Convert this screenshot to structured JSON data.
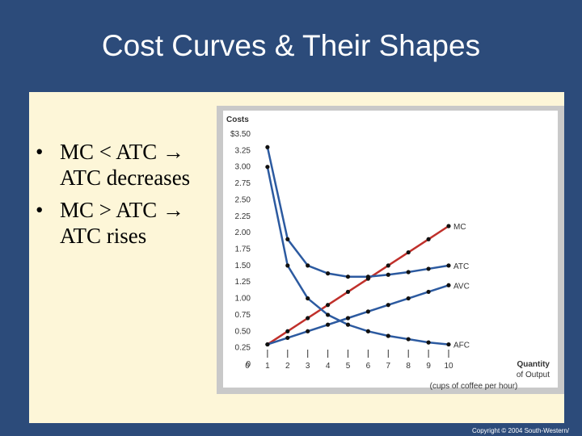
{
  "slide": {
    "title": "Cost Curves & Their Shapes",
    "bullets": [
      {
        "bullet": "•",
        "line1": "MC < ATC ",
        "arrow": "→",
        "line2": "ATC decreases"
      },
      {
        "bullet": "•",
        "line1": "MC > ATC ",
        "arrow": "→",
        "line2": "ATC rises"
      }
    ],
    "copyright": "Copyright © 2004 South-Western/"
  },
  "chart_data": {
    "type": "line",
    "title": "",
    "ylabel": "Costs",
    "xlabel_line1": "Quantity",
    "xlabel_line2": "of Output",
    "xlabel_sub": "(cups of coffee per hour)",
    "x": [
      1,
      2,
      3,
      4,
      5,
      6,
      7,
      8,
      9,
      10
    ],
    "xlim": [
      0,
      10
    ],
    "ylim": [
      0,
      3.5
    ],
    "y_ticks": [
      "0",
      "0.25",
      "0.50",
      "0.75",
      "1.00",
      "1.25",
      "1.50",
      "1.75",
      "2.00",
      "2.25",
      "2.50",
      "2.75",
      "3.00",
      "3.25",
      "$3.50"
    ],
    "y_tick_values": [
      0,
      0.25,
      0.5,
      0.75,
      1.0,
      1.25,
      1.5,
      1.75,
      2.0,
      2.25,
      2.5,
      2.75,
      3.0,
      3.25,
      3.5
    ],
    "x_ticks": [
      "0",
      "1",
      "2",
      "3",
      "4",
      "5",
      "6",
      "7",
      "8",
      "9",
      "10"
    ],
    "grid": false,
    "series": [
      {
        "name": "MC",
        "color": "#c0302b",
        "values": [
          0.3,
          0.5,
          0.7,
          0.9,
          1.1,
          1.3,
          1.5,
          1.7,
          1.9,
          2.1
        ]
      },
      {
        "name": "ATC",
        "color": "#2c5aa0",
        "values": [
          3.3,
          1.9,
          1.5,
          1.38,
          1.33,
          1.33,
          1.36,
          1.4,
          1.45,
          1.5
        ]
      },
      {
        "name": "AVC",
        "color": "#2c5aa0",
        "values": [
          0.3,
          0.4,
          0.5,
          0.6,
          0.7,
          0.8,
          0.9,
          1.0,
          1.1,
          1.2
        ]
      },
      {
        "name": "AFC",
        "color": "#2c5aa0",
        "values": [
          3.0,
          1.5,
          1.0,
          0.75,
          0.6,
          0.5,
          0.43,
          0.38,
          0.33,
          0.3
        ]
      }
    ]
  }
}
